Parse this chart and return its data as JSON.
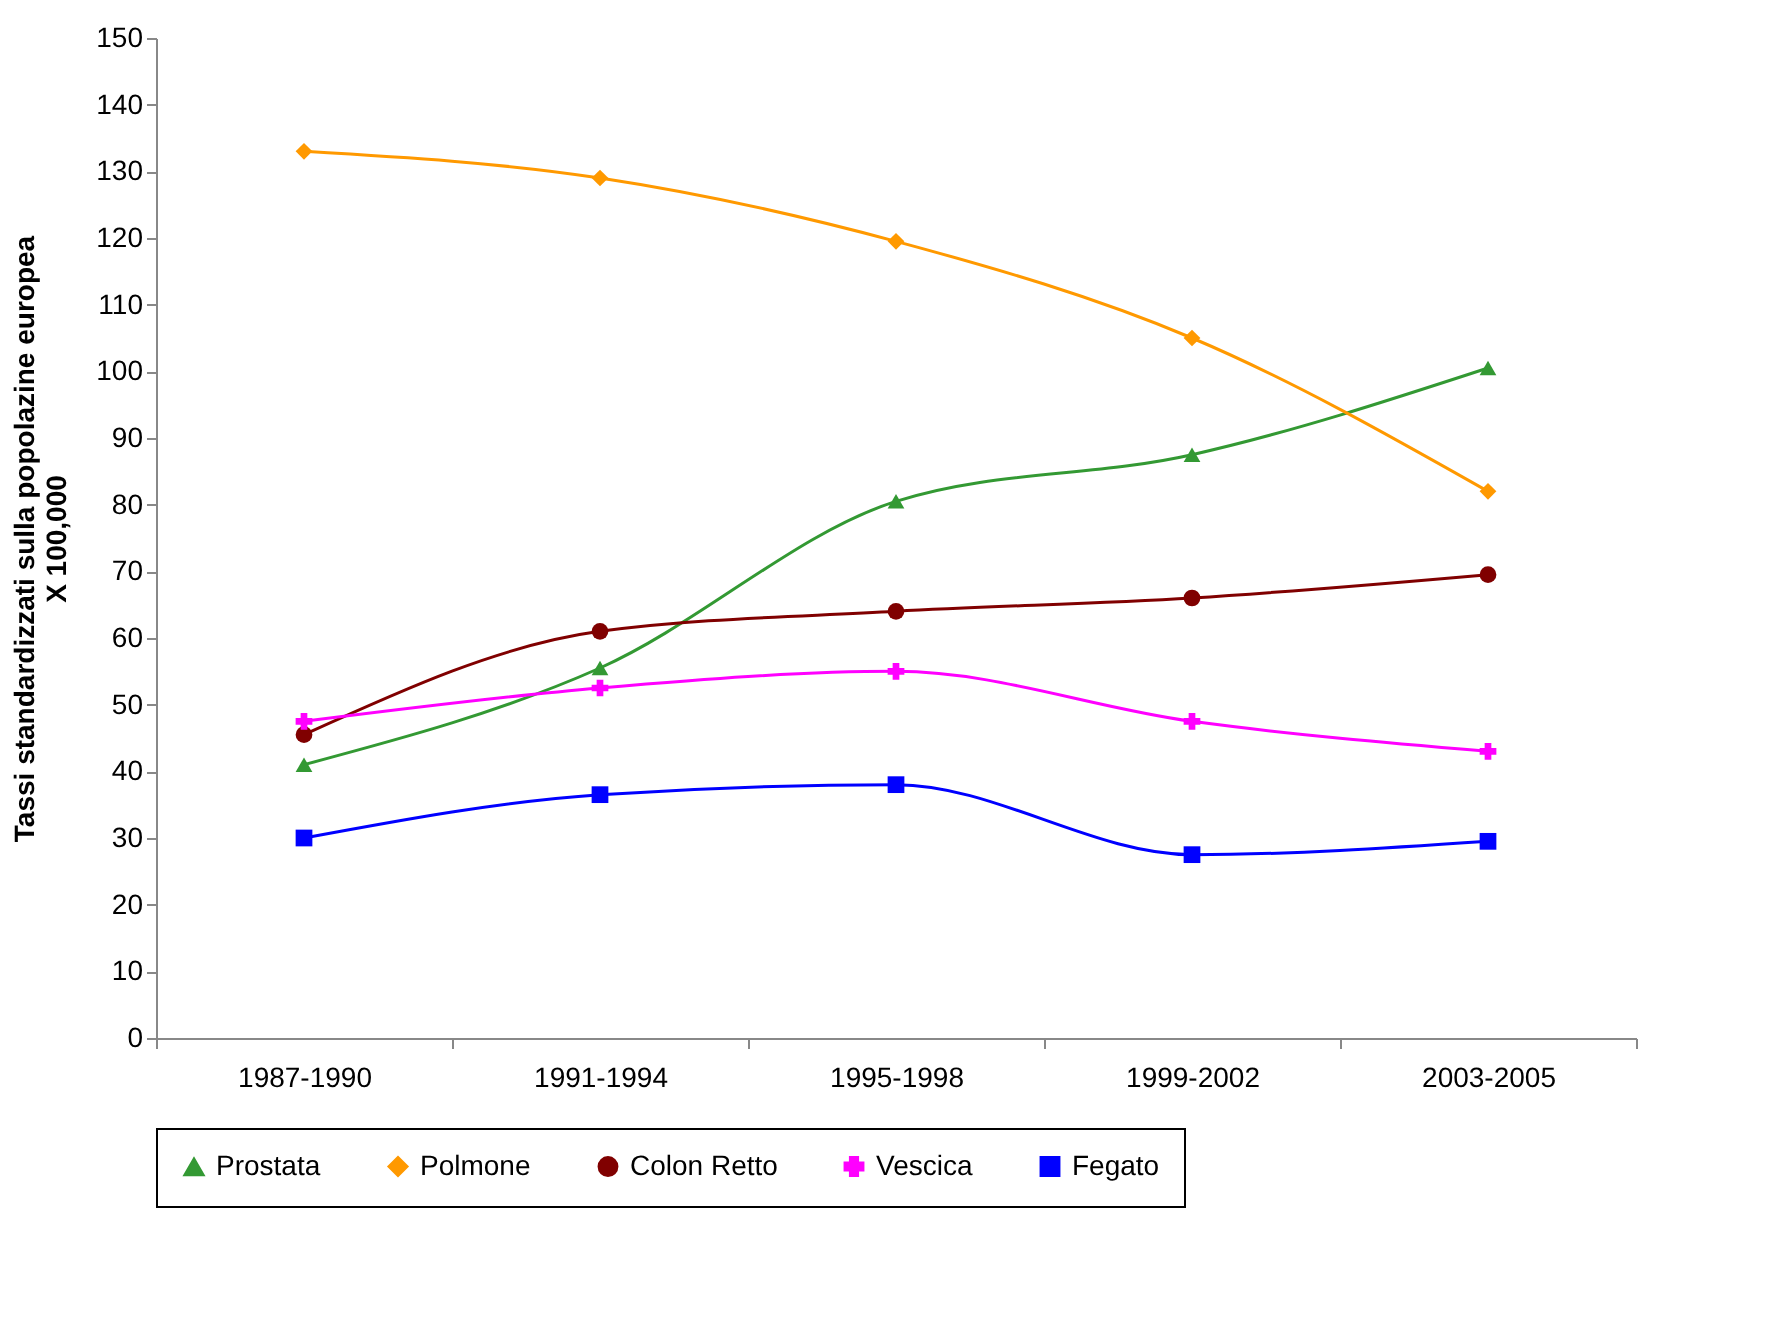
{
  "chart_data": {
    "type": "line",
    "ylabel": "Tassi standardizzati sulla popolazine europea\nX 100,000",
    "categories": [
      "1987-1990",
      "1991-1994",
      "1995-1998",
      "1999-2002",
      "2003-2005"
    ],
    "series": [
      {
        "name": "Prostata",
        "color": "#339933",
        "marker": "triangle",
        "values": [
          41,
          55.5,
          80.5,
          87.5,
          100.5
        ]
      },
      {
        "name": "Polmone",
        "color": "#ff9900",
        "marker": "diamond",
        "values": [
          133,
          129,
          119.5,
          105,
          82
        ]
      },
      {
        "name": "Colon Retto",
        "color": "#800000",
        "marker": "circle",
        "values": [
          45.5,
          61,
          64,
          66,
          69.5
        ]
      },
      {
        "name": "Vescica",
        "color": "#ff00ff",
        "marker": "cross",
        "values": [
          47.5,
          52.5,
          55,
          47.5,
          43
        ]
      },
      {
        "name": "Fegato",
        "color": "#0000ff",
        "marker": "square",
        "values": [
          30,
          36.5,
          38,
          27.5,
          29.5
        ]
      }
    ],
    "ylim": [
      0,
      150
    ],
    "yticks": [
      0,
      10,
      20,
      30,
      40,
      50,
      60,
      70,
      80,
      90,
      100,
      110,
      120,
      130,
      140,
      150
    ],
    "grid": false,
    "legend": "bottom"
  }
}
